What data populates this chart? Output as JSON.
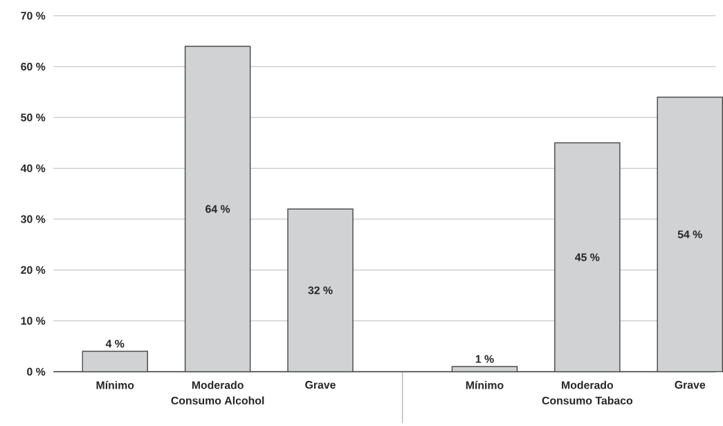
{
  "chart_data": {
    "type": "bar",
    "categories": [
      "Mínimo",
      "Moderado",
      "Grave",
      "Mínimo",
      "Moderado",
      "Grave"
    ],
    "values": [
      4,
      64,
      32,
      1,
      45,
      54
    ],
    "value_labels": [
      "4 %",
      "64 %",
      "32 %",
      "1 %",
      "45 %",
      "54 %"
    ],
    "color": "#d1d2d4",
    "ylim": [
      0,
      70
    ],
    "yticks": [
      {
        "value": 0,
        "label": "0 %"
      },
      {
        "value": 10,
        "label": "10 %"
      },
      {
        "value": 20,
        "label": "20 %"
      },
      {
        "value": 30,
        "label": "30 %"
      },
      {
        "value": 40,
        "label": "40 %"
      },
      {
        "value": 50,
        "label": "50 %"
      },
      {
        "value": 60,
        "label": "60 %"
      },
      {
        "value": 70,
        "label": "70 %"
      }
    ],
    "grid": "y",
    "annotations": [
      "Consumo Alcohol",
      "Consumo Tabaco"
    ]
  }
}
